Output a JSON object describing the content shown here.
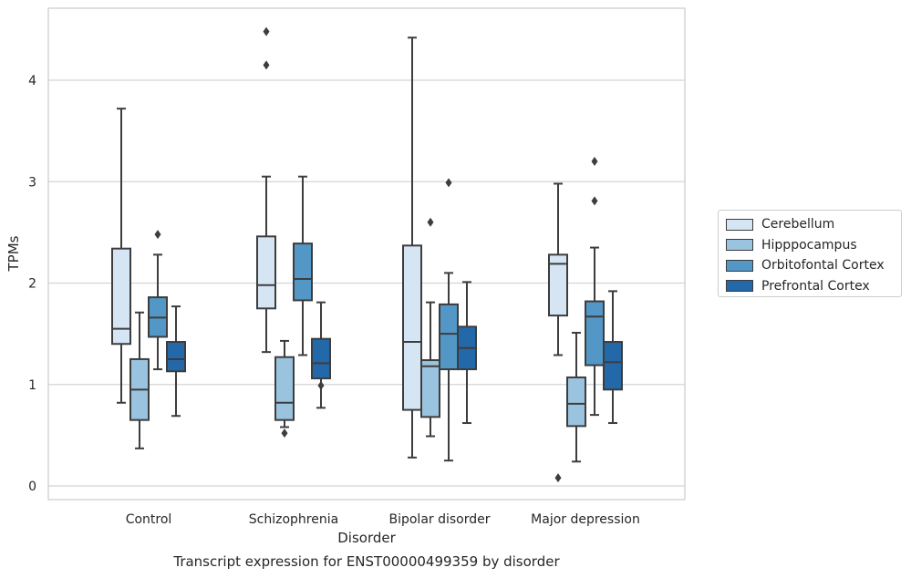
{
  "chart_data": {
    "type": "box",
    "title": "Transcript expression for ENST00000499359 by disorder",
    "xlabel": "Disorder",
    "ylabel": "TPMs",
    "ylim": [
      -0.13,
      4.7
    ],
    "yticks": [
      0,
      1,
      2,
      3,
      4
    ],
    "grid": "horizontal",
    "legend_position": "right",
    "categories": [
      "Control",
      "Schizophrenia",
      "Bipolar disorder",
      "Major depression"
    ],
    "series": [
      {
        "name": "Cerebellum",
        "color": "#d6e5f4",
        "boxes": [
          {
            "whisker_low": 0.82,
            "q1": 1.4,
            "median": 1.55,
            "q3": 2.34,
            "whisker_high": 3.72,
            "outliers": []
          },
          {
            "whisker_low": 1.32,
            "q1": 1.75,
            "median": 1.98,
            "q3": 2.46,
            "whisker_high": 3.05,
            "outliers": [
              4.15,
              4.48
            ]
          },
          {
            "whisker_low": 0.28,
            "q1": 0.75,
            "median": 1.42,
            "q3": 2.37,
            "whisker_high": 4.42,
            "outliers": []
          },
          {
            "whisker_low": 1.29,
            "q1": 1.68,
            "median": 2.19,
            "q3": 2.28,
            "whisker_high": 2.98,
            "outliers": [
              0.08
            ]
          }
        ]
      },
      {
        "name": "Hipppocampus",
        "color": "#9ac3df",
        "boxes": [
          {
            "whisker_low": 0.37,
            "q1": 0.65,
            "median": 0.95,
            "q3": 1.25,
            "whisker_high": 1.71,
            "outliers": []
          },
          {
            "whisker_low": 0.58,
            "q1": 0.65,
            "median": 0.82,
            "q3": 1.27,
            "whisker_high": 1.43,
            "outliers": [
              0.52
            ]
          },
          {
            "whisker_low": 0.49,
            "q1": 0.68,
            "median": 1.18,
            "q3": 1.24,
            "whisker_high": 1.81,
            "outliers": [
              2.6
            ]
          },
          {
            "whisker_low": 0.24,
            "q1": 0.59,
            "median": 0.81,
            "q3": 1.07,
            "whisker_high": 1.51,
            "outliers": []
          }
        ]
      },
      {
        "name": "Orbitofontal Cortex",
        "color": "#5397c7",
        "boxes": [
          {
            "whisker_low": 1.15,
            "q1": 1.47,
            "median": 1.66,
            "q3": 1.86,
            "whisker_high": 2.28,
            "outliers": [
              2.48
            ]
          },
          {
            "whisker_low": 1.29,
            "q1": 1.83,
            "median": 2.04,
            "q3": 2.39,
            "whisker_high": 3.05,
            "outliers": []
          },
          {
            "whisker_low": 0.25,
            "q1": 1.15,
            "median": 1.5,
            "q3": 1.79,
            "whisker_high": 2.1,
            "outliers": [
              2.99
            ]
          },
          {
            "whisker_low": 0.7,
            "q1": 1.19,
            "median": 1.67,
            "q3": 1.82,
            "whisker_high": 2.35,
            "outliers": [
              2.81,
              3.2
            ]
          }
        ]
      },
      {
        "name": "Prefrontal Cortex",
        "color": "#2368a8",
        "boxes": [
          {
            "whisker_low": 0.69,
            "q1": 1.13,
            "median": 1.25,
            "q3": 1.42,
            "whisker_high": 1.77,
            "outliers": []
          },
          {
            "whisker_low": 0.77,
            "q1": 1.06,
            "median": 1.21,
            "q3": 1.45,
            "whisker_high": 1.81,
            "outliers": [
              0.99
            ]
          },
          {
            "whisker_low": 0.62,
            "q1": 1.15,
            "median": 1.36,
            "q3": 1.57,
            "whisker_high": 2.01,
            "outliers": []
          },
          {
            "whisker_low": 0.62,
            "q1": 0.95,
            "median": 1.22,
            "q3": 1.42,
            "whisker_high": 1.92,
            "outliers": []
          }
        ]
      }
    ]
  }
}
